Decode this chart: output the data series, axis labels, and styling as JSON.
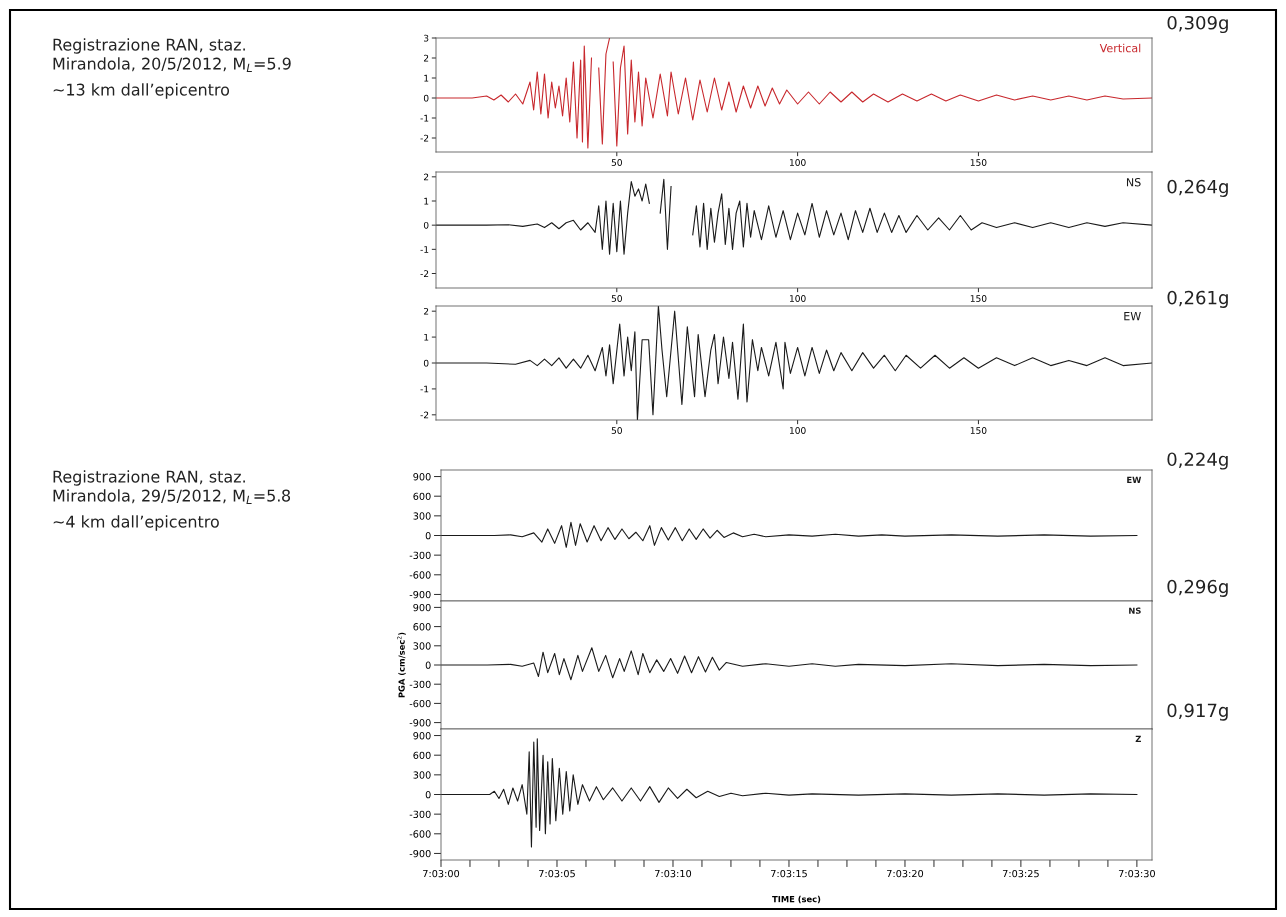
{
  "chart_data": [
    {
      "type": "line",
      "title": "Vertical",
      "annotations": [
        "0,309g",
        "Registrazione RAN, staz.",
        "Mirandola, 20/5/2012, M$_{L}$=5.9",
        "~13 km dall’epicentro"
      ],
      "xlim": [
        0,
        198
      ],
      "xticks": [
        50,
        100,
        150
      ],
      "ylim": [
        -2.7,
        3
      ],
      "yticks": [
        -2,
        -1,
        0,
        1,
        2,
        3
      ],
      "x": [
        0,
        10,
        14,
        16,
        18,
        20,
        22,
        24,
        26,
        27,
        28,
        29,
        30,
        31,
        32,
        33,
        34,
        35,
        36,
        37,
        38,
        39,
        40,
        40.5,
        41,
        42,
        43,
        44,
        45,
        46,
        47,
        48,
        48.5,
        49,
        50,
        51,
        52,
        53,
        54,
        55,
        56,
        57,
        58,
        60,
        62,
        64,
        65,
        67,
        69,
        71,
        73,
        75,
        77,
        79,
        81,
        83,
        85,
        87,
        89,
        91,
        93,
        95,
        97,
        100,
        103,
        106,
        109,
        112,
        115,
        118,
        121,
        125,
        129,
        133,
        137,
        141,
        145,
        150,
        155,
        160,
        165,
        170,
        175,
        180,
        185,
        190,
        198
      ],
      "series": [
        {
          "color": "#c8282d",
          "values": [
            0,
            0,
            0.1,
            -0.1,
            0.15,
            -0.2,
            0.2,
            -0.3,
            0.8,
            -0.6,
            1.3,
            -0.8,
            1.2,
            -1.0,
            0.8,
            -0.5,
            0.6,
            -0.9,
            1.0,
            -1.2,
            1.8,
            -2.0,
            1.9,
            -2.2,
            2.6,
            -2.5,
            2.0,
            null,
            1.5,
            -2.3,
            2.2,
            3.0,
            null,
            1.8,
            -2.4,
            1.5,
            2.6,
            -1.8,
            1.9,
            -1.2,
            1.3,
            -1.4,
            1.0,
            -1.0,
            1.2,
            -0.9,
            1.3,
            -0.8,
            1.0,
            -1.1,
            0.9,
            -0.7,
            1.0,
            -0.6,
            0.8,
            -0.7,
            0.6,
            -0.5,
            0.6,
            -0.4,
            0.5,
            -0.3,
            0.4,
            -0.3,
            0.3,
            -0.3,
            0.3,
            -0.2,
            0.3,
            -0.2,
            0.2,
            -0.2,
            0.2,
            -0.15,
            0.2,
            -0.15,
            0.15,
            -0.15,
            0.15,
            -0.1,
            0.1,
            -0.1,
            0.1,
            -0.1,
            0.1,
            -0.05,
            0
          ]
        }
      ]
    },
    {
      "type": "line",
      "title": "NS",
      "annotations": [
        "0,264g"
      ],
      "xlim": [
        0,
        198
      ],
      "xticks": [
        50,
        100,
        150
      ],
      "ylim": [
        -2.6,
        2.2
      ],
      "yticks": [
        -2,
        -1,
        0,
        1,
        2
      ],
      "x": [
        0,
        14,
        20,
        24,
        28,
        30,
        32,
        34,
        36,
        38,
        40,
        42,
        44,
        45,
        46,
        47,
        48,
        49,
        50,
        51,
        52,
        53,
        54,
        55,
        56,
        57,
        58,
        59,
        60,
        61,
        62,
        63,
        64,
        65,
        66,
        67,
        68,
        69,
        70,
        71,
        72,
        73,
        74,
        75,
        76,
        77,
        78,
        79,
        80,
        81,
        82,
        83,
        84,
        85,
        86,
        87,
        88,
        90,
        92,
        94,
        96,
        98,
        100,
        102,
        104,
        106,
        108,
        110,
        112,
        114,
        116,
        118,
        120,
        122,
        124,
        126,
        128,
        130,
        133,
        136,
        139,
        142,
        145,
        148,
        151,
        155,
        160,
        165,
        170,
        175,
        180,
        185,
        190,
        198
      ],
      "series": [
        {
          "color": "#1a1a1a",
          "values": [
            0,
            0,
            0.02,
            -0.05,
            0.05,
            -0.1,
            0.1,
            -0.15,
            0.1,
            0.2,
            -0.2,
            0.1,
            -0.3,
            0.8,
            -1.0,
            1.0,
            -1.2,
            0.9,
            -1.1,
            1.0,
            -1.2,
            0.5,
            1.8,
            1.2,
            1.5,
            1.0,
            1.7,
            0.9,
            null,
            null,
            0.5,
            1.9,
            -1.0,
            1.6,
            null,
            null,
            null,
            null,
            null,
            -0.4,
            0.8,
            -0.9,
            0.9,
            -1.0,
            0.7,
            -0.7,
            0.5,
            1.3,
            -0.8,
            0.7,
            -1.0,
            0.5,
            1.0,
            -0.9,
            0.9,
            -0.5,
            0.6,
            -0.6,
            0.8,
            -0.5,
            0.6,
            -0.6,
            0.5,
            -0.4,
            0.9,
            -0.5,
            0.6,
            -0.4,
            0.5,
            -0.6,
            0.6,
            -0.3,
            0.7,
            -0.3,
            0.5,
            -0.3,
            0.4,
            -0.3,
            0.4,
            -0.2,
            0.3,
            -0.2,
            0.4,
            -0.2,
            0.1,
            -0.1,
            0.1,
            -0.1,
            0.1,
            -0.1,
            0.1,
            -0.05,
            0.1,
            0
          ]
        }
      ]
    },
    {
      "type": "line",
      "title": "EW",
      "annotations": [
        "0,261g"
      ],
      "xlim": [
        0,
        198
      ],
      "xticks": [
        50,
        100,
        150
      ],
      "ylim": [
        -2.2,
        2.2
      ],
      "yticks": [
        -2,
        -1,
        0,
        1,
        2
      ],
      "x": [
        0,
        14,
        22,
        26,
        28,
        30,
        32,
        34,
        36,
        38,
        40,
        42,
        44,
        46,
        47,
        48,
        49,
        50.8,
        52,
        53,
        54,
        55,
        55.7,
        57,
        58.8,
        60,
        61.5,
        62.5,
        63.8,
        66,
        68,
        69.5,
        71.5,
        72.5,
        74.4,
        76,
        77,
        78,
        79.5,
        81,
        82,
        83.5,
        85,
        86,
        87.5,
        89,
        90,
        92,
        94,
        96,
        96.5,
        98,
        100,
        102,
        104,
        106,
        108,
        110,
        112,
        115,
        118,
        121,
        124,
        127,
        130,
        134,
        138,
        142,
        146,
        150,
        155,
        160,
        165,
        170,
        175,
        180,
        185,
        190,
        198
      ],
      "series": [
        {
          "color": "#1a1a1a",
          "values": [
            0,
            0,
            -0.05,
            0.1,
            -0.1,
            0.15,
            -0.1,
            0.2,
            -0.2,
            0.15,
            -0.2,
            0.3,
            -0.3,
            0.6,
            -0.5,
            0.7,
            -0.8,
            1.5,
            -0.5,
            1.0,
            -0.3,
            1.2,
            -2.2,
            0.9,
            0.9,
            -2.0,
            2.2,
            0.5,
            -1.3,
            2.0,
            -1.6,
            1.4,
            -1.3,
            1.1,
            -1.3,
            0.5,
            1.1,
            -0.8,
            1.0,
            -0.6,
            0.8,
            -1.4,
            1.5,
            -1.5,
            0.9,
            -0.3,
            0.6,
            -0.5,
            0.8,
            -1.0,
            0.8,
            -0.4,
            0.6,
            -0.5,
            0.6,
            -0.4,
            0.5,
            -0.3,
            0.4,
            -0.3,
            0.4,
            -0.2,
            0.3,
            -0.3,
            0.3,
            -0.2,
            0.3,
            -0.2,
            0.2,
            -0.2,
            0.2,
            -0.1,
            0.2,
            -0.1,
            0.1,
            -0.1,
            0.2,
            -0.1,
            0
          ]
        }
      ]
    },
    {
      "type": "line",
      "title": "EW",
      "annotations": [
        "0,224g",
        "Registrazione RAN, staz.",
        "Mirandola, 29/5/2012, M$_{L}$=5.8",
        "~4 km dall’epicentro"
      ],
      "xlim": [
        7.05,
        7.058514
      ],
      "ylim": [
        -1000,
        1000
      ],
      "yticks": [
        -900,
        -600,
        -300,
        0,
        300,
        600,
        900
      ],
      "tick_labels": "y",
      "x": [
        7.05,
        7.050639,
        7.050833,
        7.050972,
        7.051111,
        7.051208,
        7.051278,
        7.051361,
        7.051444,
        7.0515,
        7.051556,
        7.051611,
        7.051667,
        7.05175,
        7.051833,
        7.051917,
        7.052,
        7.052083,
        7.052167,
        7.05225,
        7.052333,
        7.052417,
        7.0525,
        7.052556,
        7.052639,
        7.052722,
        7.052806,
        7.052889,
        7.052972,
        7.053056,
        7.053139,
        7.053222,
        7.053306,
        7.053389,
        7.0535,
        7.053611,
        7.05375,
        7.053889,
        7.054167,
        7.054444,
        7.054722,
        7.055,
        7.055278,
        7.055556,
        7.056111,
        7.056667,
        7.057222,
        7.057778,
        7.058333
      ],
      "series": [
        {
          "color": "#1a1a1a",
          "values": [
            0,
            0,
            10,
            -20,
            40,
            -100,
            100,
            -120,
            150,
            -180,
            200,
            -150,
            180,
            -100,
            150,
            -80,
            120,
            -60,
            100,
            -50,
            50,
            -80,
            150,
            -150,
            120,
            -70,
            120,
            -80,
            100,
            -60,
            100,
            -40,
            80,
            -30,
            40,
            -20,
            20,
            -20,
            10,
            -10,
            20,
            -10,
            10,
            -10,
            10,
            -10,
            10,
            -10,
            0
          ]
        }
      ]
    },
    {
      "type": "line",
      "title": "NS",
      "annotations": [
        "0,296g"
      ],
      "ylabel": "PGA (cm/sec$^{2}$)",
      "xlim": [
        7.05,
        7.058514
      ],
      "ylim": [
        -1000,
        1000
      ],
      "yticks": [
        -900,
        -600,
        -300,
        0,
        300,
        600,
        900
      ],
      "tick_labels": "y",
      "x": [
        7.05,
        7.050556,
        7.050833,
        7.050972,
        7.051111,
        7.051167,
        7.051222,
        7.051278,
        7.051361,
        7.051417,
        7.051472,
        7.051556,
        7.051639,
        7.051694,
        7.051806,
        7.051889,
        7.051972,
        7.052056,
        7.052139,
        7.052194,
        7.052278,
        7.052361,
        7.052417,
        7.0525,
        7.052583,
        7.052667,
        7.05275,
        7.052833,
        7.052917,
        7.053,
        7.053083,
        7.053167,
        7.05325,
        7.053333,
        7.053417,
        7.053611,
        7.053889,
        7.054167,
        7.054444,
        7.054722,
        7.055,
        7.055556,
        7.056111,
        7.056667,
        7.057222,
        7.057778,
        7.058333
      ],
      "series": [
        {
          "color": "#1a1a1a",
          "values": [
            0,
            0,
            10,
            -20,
            30,
            -180,
            200,
            -120,
            180,
            -150,
            100,
            -230,
            150,
            -100,
            270,
            -100,
            150,
            -200,
            100,
            -100,
            220,
            -150,
            180,
            -120,
            80,
            -100,
            100,
            -130,
            140,
            -120,
            130,
            -110,
            120,
            -80,
            40,
            -20,
            20,
            -20,
            20,
            -20,
            10,
            -10,
            20,
            -10,
            10,
            -10,
            0
          ]
        }
      ]
    },
    {
      "type": "line",
      "title": "Z",
      "annotations": [
        "0,917g"
      ],
      "xlabel": "TIME (sec)",
      "xlim": [
        7.05,
        7.058514
      ],
      "ylim": [
        -1000,
        1000
      ],
      "yticks": [
        -900,
        -600,
        -300,
        0,
        300,
        600,
        900
      ],
      "xticks": [
        {
          "value": 7.05,
          "label": "7:03:00"
        },
        {
          "value": 7.050347,
          "label": null
        },
        {
          "value": 7.050694,
          "label": null
        },
        {
          "value": 7.051042,
          "label": null
        },
        {
          "value": 7.051389,
          "label": "7:03:05"
        },
        {
          "value": 7.051736,
          "label": null
        },
        {
          "value": 7.052083,
          "label": null
        },
        {
          "value": 7.052431,
          "label": null
        },
        {
          "value": 7.052778,
          "label": "7:03:10"
        },
        {
          "value": 7.053125,
          "label": null
        },
        {
          "value": 7.053472,
          "label": null
        },
        {
          "value": 7.053819,
          "label": null
        },
        {
          "value": 7.054167,
          "label": "7:03:15"
        },
        {
          "value": 7.054514,
          "label": null
        },
        {
          "value": 7.054861,
          "label": null
        },
        {
          "value": 7.055208,
          "label": null
        },
        {
          "value": 7.055556,
          "label": "7:03:20"
        },
        {
          "value": 7.055903,
          "label": null
        },
        {
          "value": 7.05625,
          "label": null
        },
        {
          "value": 7.056597,
          "label": null
        },
        {
          "value": 7.056944,
          "label": "7:03:25"
        },
        {
          "value": 7.057292,
          "label": null
        },
        {
          "value": 7.057639,
          "label": null
        },
        {
          "value": 7.057986,
          "label": null
        },
        {
          "value": 7.058333,
          "label": "7:03:30"
        }
      ],
      "x": [
        7.05,
        7.050583,
        7.050639,
        7.050694,
        7.05075,
        7.050806,
        7.050861,
        7.050917,
        7.050972,
        7.051028,
        7.051056,
        7.051083,
        7.051111,
        7.051139,
        7.051153,
        7.051181,
        7.051222,
        7.05125,
        7.051278,
        7.051306,
        7.051333,
        7.051375,
        7.051417,
        7.051458,
        7.0515,
        7.051542,
        7.051583,
        7.051639,
        7.051694,
        7.051778,
        7.051861,
        7.051944,
        7.052056,
        7.052167,
        7.052278,
        7.052389,
        7.0525,
        7.052611,
        7.052722,
        7.052833,
        7.052944,
        7.053056,
        7.053194,
        7.053333,
        7.053472,
        7.053611,
        7.053889,
        7.054167,
        7.054444,
        7.055,
        7.055556,
        7.056111,
        7.056667,
        7.057222,
        7.057778,
        7.058333
      ],
      "series": [
        {
          "color": "#1a1a1a",
          "values": [
            0,
            0,
            50,
            -60,
            80,
            -150,
            100,
            -100,
            150,
            -300,
            650,
            -800,
            800,
            -500,
            850,
            -550,
            600,
            -600,
            500,
            -450,
            550,
            -400,
            400,
            -300,
            350,
            -250,
            300,
            -150,
            150,
            -100,
            120,
            -80,
            100,
            -100,
            100,
            -100,
            120,
            -120,
            100,
            -60,
            80,
            -50,
            50,
            -30,
            20,
            -20,
            20,
            -10,
            10,
            -10,
            10,
            -10,
            10,
            -10,
            10,
            0
          ]
        }
      ]
    }
  ]
}
